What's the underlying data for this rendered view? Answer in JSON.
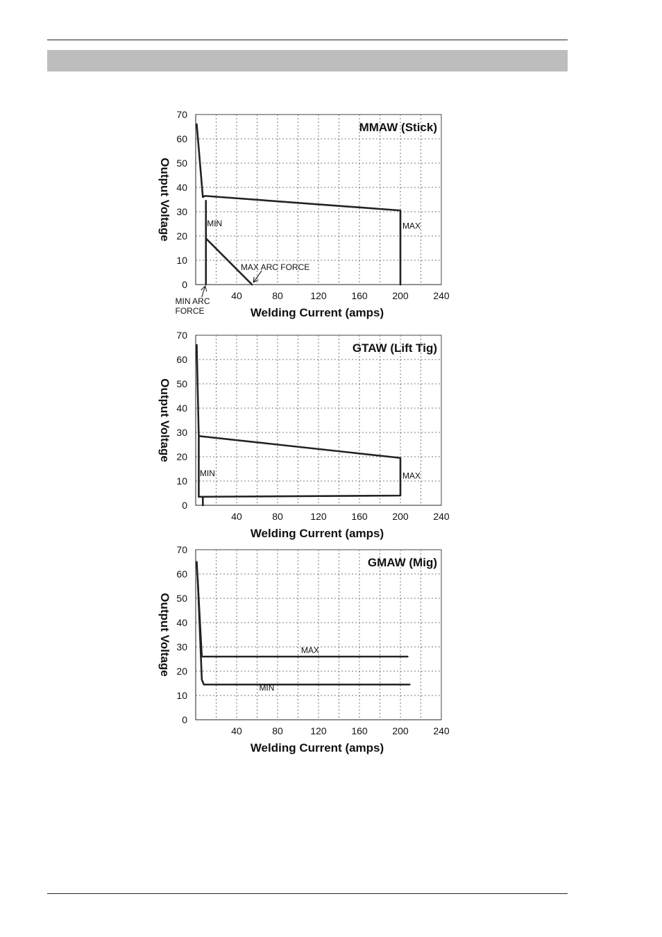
{
  "page": {
    "header_band": "",
    "footer": ""
  },
  "chart_data": [
    {
      "type": "line",
      "title": "MMAW (Stick)",
      "xlabel": "Welding Current (amps)",
      "ylabel": "Output Voltage",
      "xlim": [
        0,
        240
      ],
      "ylim": [
        0,
        70
      ],
      "xticks": [
        "40",
        "80",
        "120",
        "160",
        "200",
        "240"
      ],
      "yticks": [
        "0",
        "10",
        "20",
        "30",
        "40",
        "50",
        "60",
        "70"
      ],
      "grid": true,
      "series": [
        {
          "name": "MAX",
          "x": [
            1,
            7,
            9,
            200,
            200
          ],
          "y": [
            66,
            36,
            36.5,
            30.5,
            0
          ]
        },
        {
          "name": "MIN",
          "x": [
            10,
            10
          ],
          "y": [
            34.5,
            0
          ]
        },
        {
          "name": "",
          "x": [
            10,
            55
          ],
          "y": [
            19,
            0
          ]
        }
      ],
      "annotations": [
        {
          "text": "MIN",
          "x": 11,
          "y": 24
        },
        {
          "text": "MAX",
          "x": 202,
          "y": 23
        },
        {
          "text": "MAX ARC FORCE",
          "x": 44,
          "y": 6
        },
        {
          "text": "MIN ARC",
          "x": -20,
          "y": -8
        },
        {
          "text": "FORCE",
          "x": -20,
          "y": -12
        }
      ]
    },
    {
      "type": "line",
      "title": "GTAW (Lift Tig)",
      "xlabel": "Welding Current (amps)",
      "ylabel": "Output Voltage",
      "xlim": [
        0,
        240
      ],
      "ylim": [
        0,
        70
      ],
      "xticks": [
        "40",
        "80",
        "120",
        "160",
        "200",
        "240"
      ],
      "yticks": [
        "0",
        "10",
        "20",
        "30",
        "40",
        "50",
        "60",
        "70"
      ],
      "grid": true,
      "series": [
        {
          "name": "MAX",
          "x": [
            1,
            3,
            200,
            200,
            3,
            3
          ],
          "y": [
            66,
            28.5,
            19.5,
            4,
            3.5,
            28
          ]
        },
        {
          "name": "MIN",
          "x": [
            7,
            7
          ],
          "y": [
            3.5,
            0
          ]
        }
      ],
      "annotations": [
        {
          "text": "MIN",
          "x": 4,
          "y": 12
        },
        {
          "text": "MAX",
          "x": 202,
          "y": 11
        }
      ]
    },
    {
      "type": "line",
      "title": "GMAW (Mig)",
      "xlabel": "Welding Current (amps)",
      "ylabel": "Output Voltage",
      "xlim": [
        0,
        240
      ],
      "ylim": [
        0,
        70
      ],
      "xticks": [
        "40",
        "80",
        "120",
        "160",
        "200",
        "240"
      ],
      "yticks": [
        "0",
        "10",
        "20",
        "30",
        "40",
        "50",
        "60",
        "70"
      ],
      "grid": true,
      "series": [
        {
          "name": "MAX",
          "x": [
            1,
            6,
            207
          ],
          "y": [
            65,
            26,
            26
          ]
        },
        {
          "name": "MIN",
          "x": [
            2,
            6,
            8,
            209
          ],
          "y": [
            58,
            16.5,
            14.5,
            14.5
          ]
        }
      ],
      "annotations": [
        {
          "text": "MAX",
          "x": 103,
          "y": 27.5
        },
        {
          "text": "MIN",
          "x": 62,
          "y": 12
        }
      ]
    }
  ]
}
